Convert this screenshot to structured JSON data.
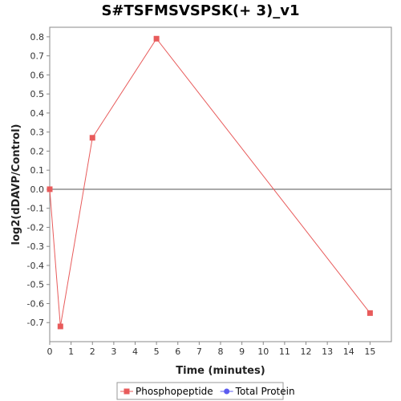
{
  "chart_data": {
    "type": "line",
    "title": "S#TSFMSVSPSK(+ 3)_v1",
    "xlabel": "Time (minutes)",
    "ylabel": "log2(dDAVP/Control)",
    "xlim": [
      0,
      16
    ],
    "ylim": [
      -0.8,
      0.85
    ],
    "xticks": [
      0,
      1,
      2,
      3,
      4,
      5,
      6,
      7,
      8,
      9,
      10,
      11,
      12,
      13,
      14,
      15
    ],
    "yticks": [
      -0.7,
      -0.6,
      -0.5,
      -0.4,
      -0.3,
      -0.2,
      -0.1,
      0.0,
      0.1,
      0.2,
      0.3,
      0.4,
      0.5,
      0.6,
      0.7,
      0.8
    ],
    "ytick_labels": [
      "-0.7",
      "-0.6",
      "-0.5",
      "-0.4",
      "-0.3",
      "-0.2",
      "-0.1",
      "0.0",
      "0.1",
      "0.2",
      "0.3",
      "0.4",
      "0.5",
      "0.6",
      "0.7",
      "0.8"
    ],
    "baseline": 0,
    "grid": false,
    "legend_position": "bottom-center",
    "series": [
      {
        "name": "Phosphopeptide",
        "color": "#e85b5b",
        "marker": "square",
        "x": [
          0,
          0.5,
          2,
          5,
          15
        ],
        "y": [
          0.0,
          -0.72,
          0.27,
          0.79,
          -0.65
        ]
      },
      {
        "name": "Total Protein",
        "color": "#5b5bf0",
        "marker": "circle",
        "x": [],
        "y": []
      }
    ]
  }
}
